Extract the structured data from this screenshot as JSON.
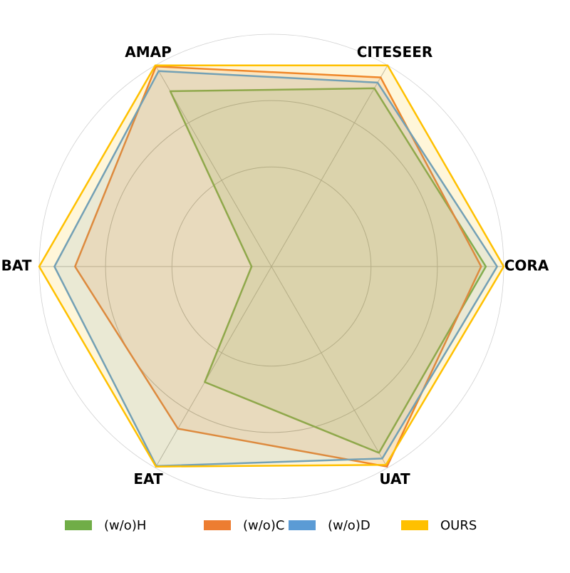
{
  "chart_data": {
    "type": "radar",
    "categories": [
      "CORA",
      "CITESEER",
      "AMAP",
      "BAT",
      "EAT",
      "UAT"
    ],
    "rlim": [
      0,
      3.5
    ],
    "rticks": [
      1.5,
      2.5,
      3.5
    ],
    "series": [
      {
        "name": "(w/o)H",
        "color": "#70ad47",
        "values": [
          3.23,
          3.1,
          3.05,
          0.3,
          2.01,
          3.24
        ]
      },
      {
        "name": "(w/o)C",
        "color": "#ed7d31",
        "values": [
          3.16,
          3.29,
          3.48,
          2.96,
          2.82,
          3.48
        ]
      },
      {
        "name": "(w/o)D",
        "color": "#5b9bd5",
        "values": [
          3.4,
          3.2,
          3.4,
          3.27,
          3.47,
          3.34
        ]
      },
      {
        "name": "OURS",
        "color": "#ffc000",
        "values": [
          3.5,
          3.5,
          3.5,
          3.5,
          3.48,
          3.45
        ]
      }
    ]
  }
}
